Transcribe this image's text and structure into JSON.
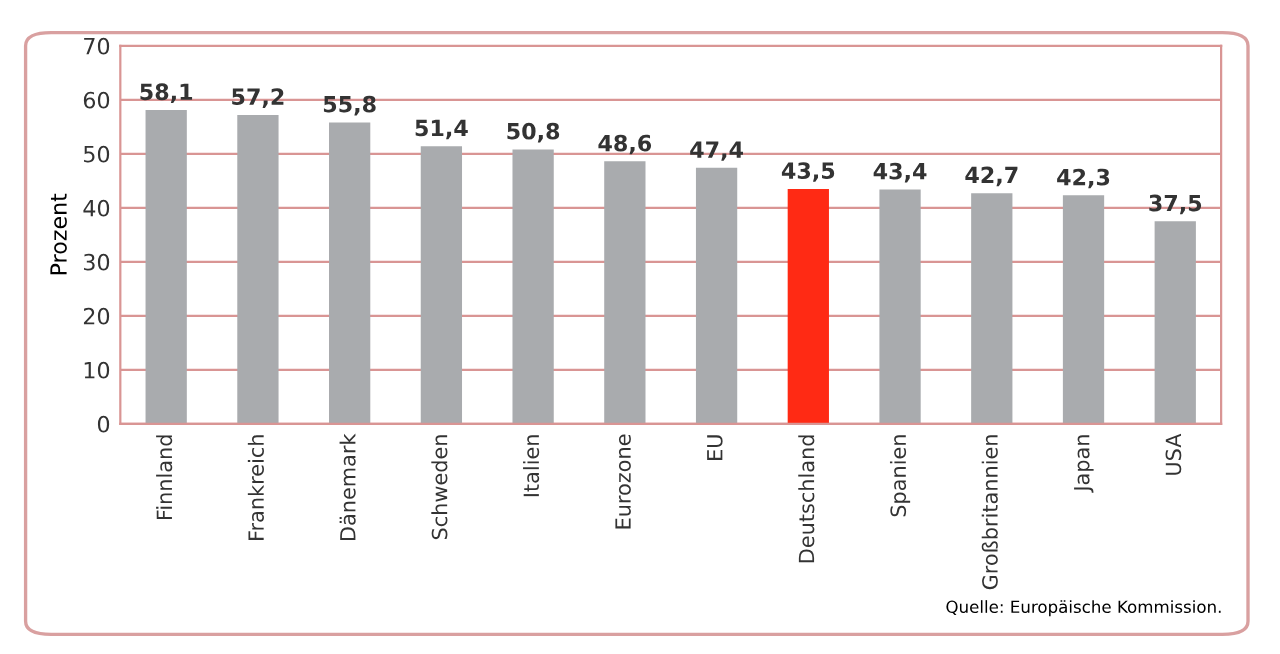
{
  "chart_data": {
    "type": "bar",
    "ylabel": "Prozent",
    "categories": [
      "Finnland",
      "Frankreich",
      "Dänemark",
      "Schweden",
      "Italien",
      "Eurozone",
      "EU",
      "Deutschland",
      "Spanien",
      "Großbritannien",
      "Japan",
      "USA"
    ],
    "values": [
      58.1,
      57.2,
      55.8,
      51.4,
      50.8,
      48.6,
      47.4,
      43.5,
      43.4,
      42.7,
      42.3,
      37.5
    ],
    "value_labels": [
      "58,1",
      "57,2",
      "55,8",
      "51,4",
      "50,8",
      "48,6",
      "47,4",
      "43,5",
      "43,4",
      "42,7",
      "42,3",
      "37,5"
    ],
    "colors": [
      "#a9abae",
      "#a9abae",
      "#a9abae",
      "#a9abae",
      "#a9abae",
      "#a9abae",
      "#a9abae",
      "#ff2a14",
      "#a9abae",
      "#a9abae",
      "#a9abae",
      "#a9abae"
    ],
    "ylim": [
      0,
      70
    ],
    "yticks": [
      0,
      10,
      20,
      30,
      40,
      50,
      60,
      70
    ],
    "grid": "y",
    "annotations": [
      "Quelle: Europäische Kommission."
    ]
  }
}
